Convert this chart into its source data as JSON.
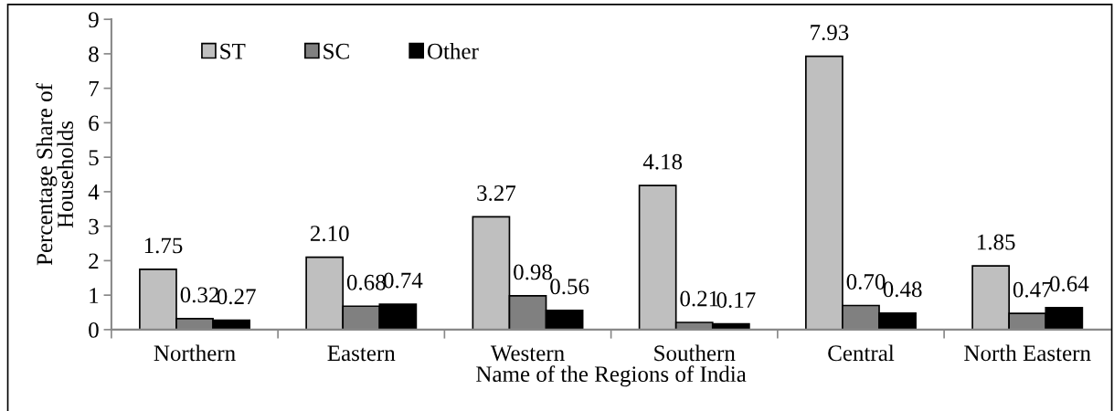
{
  "chart_data": {
    "type": "bar",
    "xlabel": "Name of the Regions of India",
    "ylabel": "Percentage Share of\nHouseholds",
    "categories": [
      "Northern",
      "Eastern",
      "Western",
      "Southern",
      "Central",
      "North Eastern"
    ],
    "series": [
      {
        "name": "ST",
        "color": "#bfbfbf",
        "values": [
          1.75,
          2.1,
          3.27,
          4.18,
          7.93,
          1.85
        ],
        "value_labels": [
          "1.75",
          "2.10",
          "3.27",
          "4.18",
          "7.93",
          "1.85"
        ]
      },
      {
        "name": "SC",
        "color": "#808080",
        "values": [
          0.32,
          0.68,
          0.98,
          0.21,
          0.7,
          0.47
        ],
        "value_labels": [
          "0.32",
          "0.68",
          "0.98",
          "0.21",
          "0.70",
          "0.47"
        ]
      },
      {
        "name": "Other",
        "color": "#000000",
        "values": [
          0.27,
          0.74,
          0.56,
          0.17,
          0.48,
          0.64
        ],
        "value_labels": [
          "0.27",
          "0.74",
          "0.56",
          "0.17",
          "0.48",
          "0.64"
        ]
      }
    ],
    "ylim": [
      0,
      9
    ],
    "yticks": [
      0,
      1,
      2,
      3,
      4,
      5,
      6,
      7,
      8,
      9
    ],
    "grid": false,
    "legend": "top left"
  }
}
